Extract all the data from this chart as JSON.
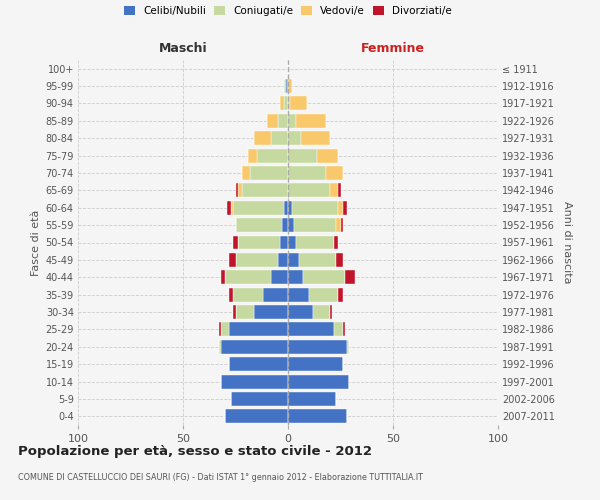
{
  "age_groups": [
    "0-4",
    "5-9",
    "10-14",
    "15-19",
    "20-24",
    "25-29",
    "30-34",
    "35-39",
    "40-44",
    "45-49",
    "50-54",
    "55-59",
    "60-64",
    "65-69",
    "70-74",
    "75-79",
    "80-84",
    "85-89",
    "90-94",
    "95-99",
    "100+"
  ],
  "birth_years": [
    "2007-2011",
    "2002-2006",
    "1997-2001",
    "1992-1996",
    "1987-1991",
    "1982-1986",
    "1977-1981",
    "1972-1976",
    "1967-1971",
    "1962-1966",
    "1957-1961",
    "1952-1956",
    "1947-1951",
    "1942-1946",
    "1937-1941",
    "1932-1936",
    "1927-1931",
    "1922-1926",
    "1917-1921",
    "1912-1916",
    "≤ 1911"
  ],
  "male_celibe": [
    30,
    27,
    32,
    28,
    32,
    28,
    16,
    12,
    8,
    5,
    4,
    3,
    2,
    0,
    0,
    0,
    0,
    0,
    0,
    1,
    0
  ],
  "male_coniugato": [
    0,
    0,
    0,
    0,
    1,
    4,
    9,
    14,
    22,
    20,
    20,
    22,
    24,
    22,
    18,
    15,
    8,
    5,
    2,
    1,
    0
  ],
  "male_vedovo": [
    0,
    0,
    0,
    0,
    0,
    0,
    0,
    0,
    0,
    0,
    0,
    0,
    1,
    2,
    4,
    4,
    8,
    5,
    2,
    0,
    0
  ],
  "male_divorziato": [
    0,
    0,
    0,
    0,
    0,
    1,
    1,
    2,
    2,
    3,
    2,
    0,
    2,
    1,
    0,
    0,
    0,
    0,
    0,
    0,
    0
  ],
  "female_celibe": [
    28,
    23,
    29,
    26,
    28,
    22,
    12,
    10,
    7,
    5,
    4,
    3,
    2,
    0,
    0,
    0,
    0,
    0,
    0,
    0,
    0
  ],
  "female_coniugato": [
    0,
    0,
    0,
    0,
    1,
    4,
    8,
    14,
    20,
    18,
    18,
    20,
    22,
    20,
    18,
    14,
    6,
    4,
    1,
    0,
    0
  ],
  "female_vedovo": [
    0,
    0,
    0,
    0,
    0,
    0,
    0,
    0,
    0,
    0,
    0,
    2,
    2,
    4,
    8,
    10,
    14,
    14,
    8,
    2,
    0
  ],
  "female_divorziato": [
    0,
    0,
    0,
    0,
    0,
    1,
    1,
    2,
    5,
    3,
    2,
    1,
    2,
    1,
    0,
    0,
    0,
    0,
    0,
    0,
    0
  ],
  "colors": {
    "celibe": "#4472C4",
    "coniugato": "#C5D9A0",
    "vedovo": "#F9C86A",
    "divorziato": "#C0142B"
  },
  "title": "Popolazione per età, sesso e stato civile - 2012",
  "subtitle": "COMUNE DI CASTELLUCCIO DEI SAURI (FG) - Dati ISTAT 1° gennaio 2012 - Elaborazione TUTTITALIA.IT",
  "xlabel_left": "Maschi",
  "xlabel_right": "Femmine",
  "ylabel_left": "Fasce di età",
  "ylabel_right": "Anni di nascita",
  "xlim": 100,
  "bg_color": "#f5f5f5",
  "grid_color": "#cccccc"
}
